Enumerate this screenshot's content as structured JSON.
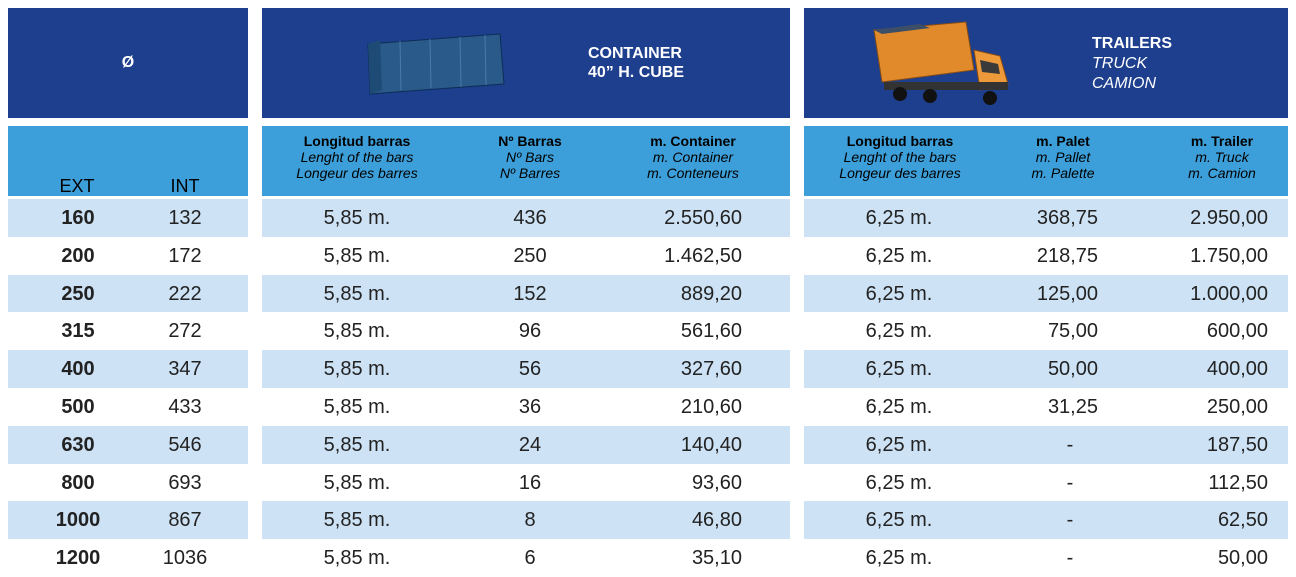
{
  "header": {
    "diameter": "Ø",
    "container": {
      "title": "CONTAINER",
      "subtitle": "40” H. CUBE"
    },
    "trailers": {
      "title": "TRAILERS",
      "lines": [
        "TRUCK",
        "CAMION"
      ]
    }
  },
  "table": {
    "columns": [
      {
        "lines": [
          "EXT"
        ]
      },
      {
        "lines": [
          "INT"
        ]
      },
      {
        "lines": [
          "Longitud barras",
          "Lenght of the bars",
          "Longeur des barres"
        ]
      },
      {
        "lines": [
          "Nº Barras",
          "Nº Bars",
          "Nº Barres"
        ]
      },
      {
        "lines": [
          "m. Container",
          "m. Container",
          "m. Conteneurs"
        ]
      },
      {
        "lines": [
          "Longitud barras",
          "Lenght of the bars",
          "Longeur des barres"
        ]
      },
      {
        "lines": [
          "m. Palet",
          "m. Pallet",
          "m. Palette"
        ]
      },
      {
        "lines": [
          "m. Trailer",
          "m. Truck",
          "m. Camion"
        ]
      }
    ],
    "rows": [
      [
        "160",
        "132",
        "5,85 m.",
        "436",
        "2.550,60",
        "6,25 m.",
        "368,75",
        "2.950,00"
      ],
      [
        "200",
        "172",
        "5,85 m.",
        "250",
        "1.462,50",
        "6,25 m.",
        "218,75",
        "1.750,00"
      ],
      [
        "250",
        "222",
        "5,85 m.",
        "152",
        "889,20",
        "6,25 m.",
        "125,00",
        "1.000,00"
      ],
      [
        "315",
        "272",
        "5,85 m.",
        "96",
        "561,60",
        "6,25 m.",
        "75,00",
        "600,00"
      ],
      [
        "400",
        "347",
        "5,85 m.",
        "56",
        "327,60",
        "6,25 m.",
        "50,00",
        "400,00"
      ],
      [
        "500",
        "433",
        "5,85 m.",
        "36",
        "210,60",
        "6,25 m.",
        "31,25",
        "250,00"
      ],
      [
        "630",
        "546",
        "5,85 m.",
        "24",
        "140,40",
        "6,25 m.",
        "-",
        "187,50"
      ],
      [
        "800",
        "693",
        "5,85 m.",
        "16",
        "93,60",
        "6,25 m.",
        "-",
        "112,50"
      ],
      [
        "1000",
        "867",
        "5,85 m.",
        "8",
        "46,80",
        "6,25 m.",
        "-",
        "62,50"
      ],
      [
        "1200",
        "1036",
        "5,85 m.",
        "6",
        "35,10",
        "6,25 m.",
        "-",
        "50,00"
      ]
    ]
  }
}
